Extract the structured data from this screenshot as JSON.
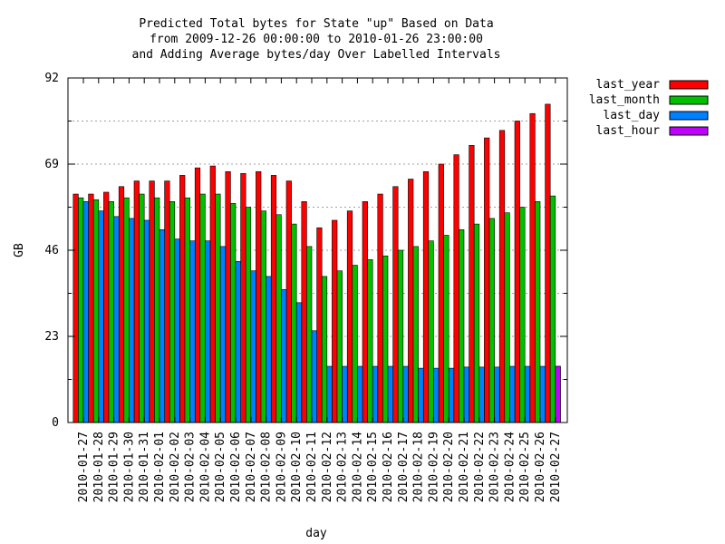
{
  "chart_data": {
    "type": "bar",
    "title_lines": [
      "Predicted Total bytes for State \"up\" Based on Data",
      "from 2009-12-26 00:00:00 to 2010-01-26 23:00:00",
      "and Adding Average bytes/day Over Labelled Intervals"
    ],
    "xlabel": "day",
    "ylabel": "GB",
    "ylim": [
      0,
      92
    ],
    "yticks": [
      0,
      23,
      46,
      69,
      92
    ],
    "grid": true,
    "legend_position": "right, outside plot, top",
    "categories": [
      "2010-01-27",
      "2010-01-28",
      "2010-01-29",
      "2010-01-30",
      "2010-01-31",
      "2010-02-01",
      "2010-02-02",
      "2010-02-03",
      "2010-02-04",
      "2010-02-05",
      "2010-02-06",
      "2010-02-07",
      "2010-02-08",
      "2010-02-09",
      "2010-02-10",
      "2010-02-11",
      "2010-02-12",
      "2010-02-13",
      "2010-02-14",
      "2010-02-15",
      "2010-02-16",
      "2010-02-17",
      "2010-02-18",
      "2010-02-19",
      "2010-02-20",
      "2010-02-21",
      "2010-02-22",
      "2010-02-23",
      "2010-02-24",
      "2010-02-25",
      "2010-02-26",
      "2010-02-27"
    ],
    "series": [
      {
        "name": "last_year",
        "color": "#ff0000",
        "values": [
          61,
          61,
          61.5,
          63,
          64.5,
          64.5,
          64.5,
          66,
          68,
          68.5,
          67,
          66.5,
          67,
          66,
          64.5,
          59,
          52,
          54,
          56.5,
          59,
          61,
          63,
          65,
          67,
          69,
          71.5,
          74,
          76,
          78,
          80.5,
          82.5,
          85
        ]
      },
      {
        "name": "last_month",
        "color": "#00c000",
        "values": [
          60,
          59.5,
          59,
          60,
          61,
          60,
          59,
          60,
          61,
          61,
          58.5,
          57.5,
          56.5,
          55.5,
          53,
          47,
          39,
          40.5,
          42,
          43.5,
          44.5,
          46,
          47,
          48.5,
          50,
          51.5,
          53,
          54.5,
          56,
          57.5,
          59,
          60.5
        ]
      },
      {
        "name": "last_day",
        "color": "#0080ff",
        "values": [
          59,
          56.5,
          55,
          54.5,
          54,
          51.5,
          49,
          48.5,
          48.5,
          47,
          43,
          40.5,
          39,
          35.5,
          32,
          24.5,
          15,
          15,
          15,
          15,
          15,
          15,
          14.5,
          14.5,
          14.5,
          14.8,
          14.8,
          14.8,
          15,
          15,
          15,
          15
        ]
      },
      {
        "name": "last_hour",
        "color": "#c000ff",
        "values": [
          null,
          null,
          null,
          null,
          null,
          null,
          null,
          null,
          null,
          null,
          null,
          null,
          null,
          null,
          null,
          null,
          null,
          null,
          null,
          null,
          null,
          null,
          null,
          null,
          null,
          null,
          null,
          null,
          null,
          null,
          null,
          15
        ]
      }
    ]
  }
}
